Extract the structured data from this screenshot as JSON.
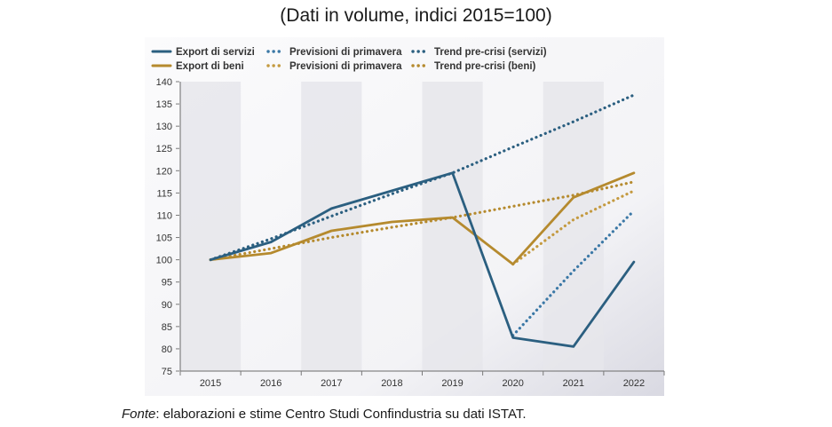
{
  "header": {
    "title": "(Dati in volume, indici 2015=100)"
  },
  "footer": {
    "source_label": "Fonte",
    "source_text": ": elaborazioni e stime Centro Studi Confindustria su dati ISTAT."
  },
  "colors": {
    "servizi": "#2b5f80",
    "servizi_forecast": "#3b78a6",
    "beni": "#b58a2e",
    "beni_forecast": "#c49a40",
    "band": "#e6e6eb",
    "plot_bg": "#f7f7f9"
  },
  "chart_data": {
    "type": "line",
    "title": "(Dati in volume, indici 2015=100)",
    "xlabel": "",
    "ylabel": "",
    "x": [
      "2015",
      "2016",
      "2017",
      "2018",
      "2019",
      "2020",
      "2021",
      "2022"
    ],
    "ylim": [
      75,
      140
    ],
    "yticks": [
      75,
      80,
      85,
      90,
      95,
      100,
      105,
      110,
      115,
      120,
      125,
      130,
      135,
      140
    ],
    "grid": false,
    "shaded_bands": [
      "2015",
      "2017",
      "2019",
      "2021"
    ],
    "legend_position": "top-left",
    "series": [
      {
        "name": "Export di servizi",
        "style": "solid",
        "color": "#2b5f80",
        "values": [
          100,
          104,
          111.5,
          115.5,
          119.5,
          82.5,
          80.5,
          99.5
        ]
      },
      {
        "name": "Previsioni di primavera",
        "style": "dotted",
        "color": "#3b78a6",
        "values": [
          null,
          null,
          null,
          null,
          null,
          83,
          97.5,
          111
        ]
      },
      {
        "name": "Trend pre-crisi (servizi)",
        "style": "dotted",
        "color": "#2b5f80",
        "values": [
          100,
          104.7,
          109.8,
          114.8,
          119.5,
          125.3,
          131,
          137
        ]
      },
      {
        "name": "Export di beni",
        "style": "solid",
        "color": "#b58a2e",
        "values": [
          100,
          101.5,
          106.5,
          108.5,
          109.5,
          99,
          114,
          119.5
        ]
      },
      {
        "name": "Previsioni di primavera",
        "style": "dotted",
        "color": "#c49a40",
        "values": [
          null,
          null,
          null,
          null,
          null,
          99,
          109,
          115.5
        ]
      },
      {
        "name": "Trend pre-crisi (beni)",
        "style": "dotted",
        "color": "#b58a2e",
        "values": [
          100,
          102.5,
          105,
          107.3,
          109.5,
          112,
          114.5,
          117.5
        ]
      }
    ]
  }
}
